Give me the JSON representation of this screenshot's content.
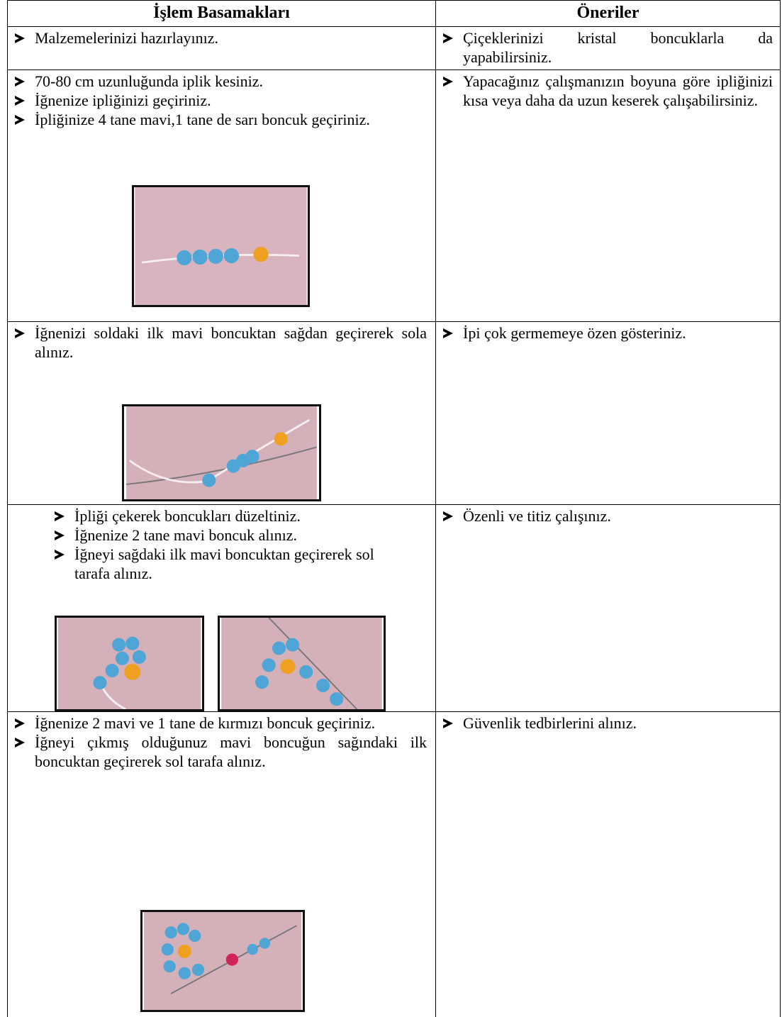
{
  "table": {
    "header": [
      "İşlem Basamakları",
      "Öneriler"
    ],
    "rows": [
      {
        "steps": [
          "Malzemelerinizi hazırlayınız."
        ],
        "tips": [
          "Çiçeklerinizi kristal boncuklarla da yapabilirsiniz."
        ]
      },
      {
        "steps": [
          "70-80 cm uzunluğunda iplik kesiniz.",
          "İğnenize ipliğinizi geçiriniz.",
          "İpliğinize 4 tane mavi,1 tane de sarı boncuk geçiriniz."
        ],
        "tips": [
          "Yapacağınız çalışmanızın boyuna göre ipliğinizi kısa veya daha da uzun keserek çalışabilirsiniz."
        ]
      },
      {
        "steps": [
          "İğnenizi soldaki ilk mavi boncuktan sağdan geçirerek sola alınız."
        ],
        "tips": [
          "İpi çok germemeye özen gösteriniz."
        ]
      },
      {
        "steps": [
          "İpliği çekerek boncukları düzeltiniz.",
          "İğnenize 2 tane mavi boncuk alınız.",
          "İğneyi sağdaki ilk mavi boncuktan geçirerek sol tarafa alınız."
        ],
        "tips": [
          "Özenli ve titiz çalışınız."
        ]
      },
      {
        "steps": [
          "İğnenize 2 mavi ve 1 tane de kırmızı boncuk geçiriniz.",
          "İğneyi çıkmış olduğunuz mavi boncuğun sağındaki ilk boncuktan geçirerek sol tarafa alınız."
        ],
        "tips": [
          "Güvenlik tedbirlerini alınız."
        ]
      }
    ]
  }
}
